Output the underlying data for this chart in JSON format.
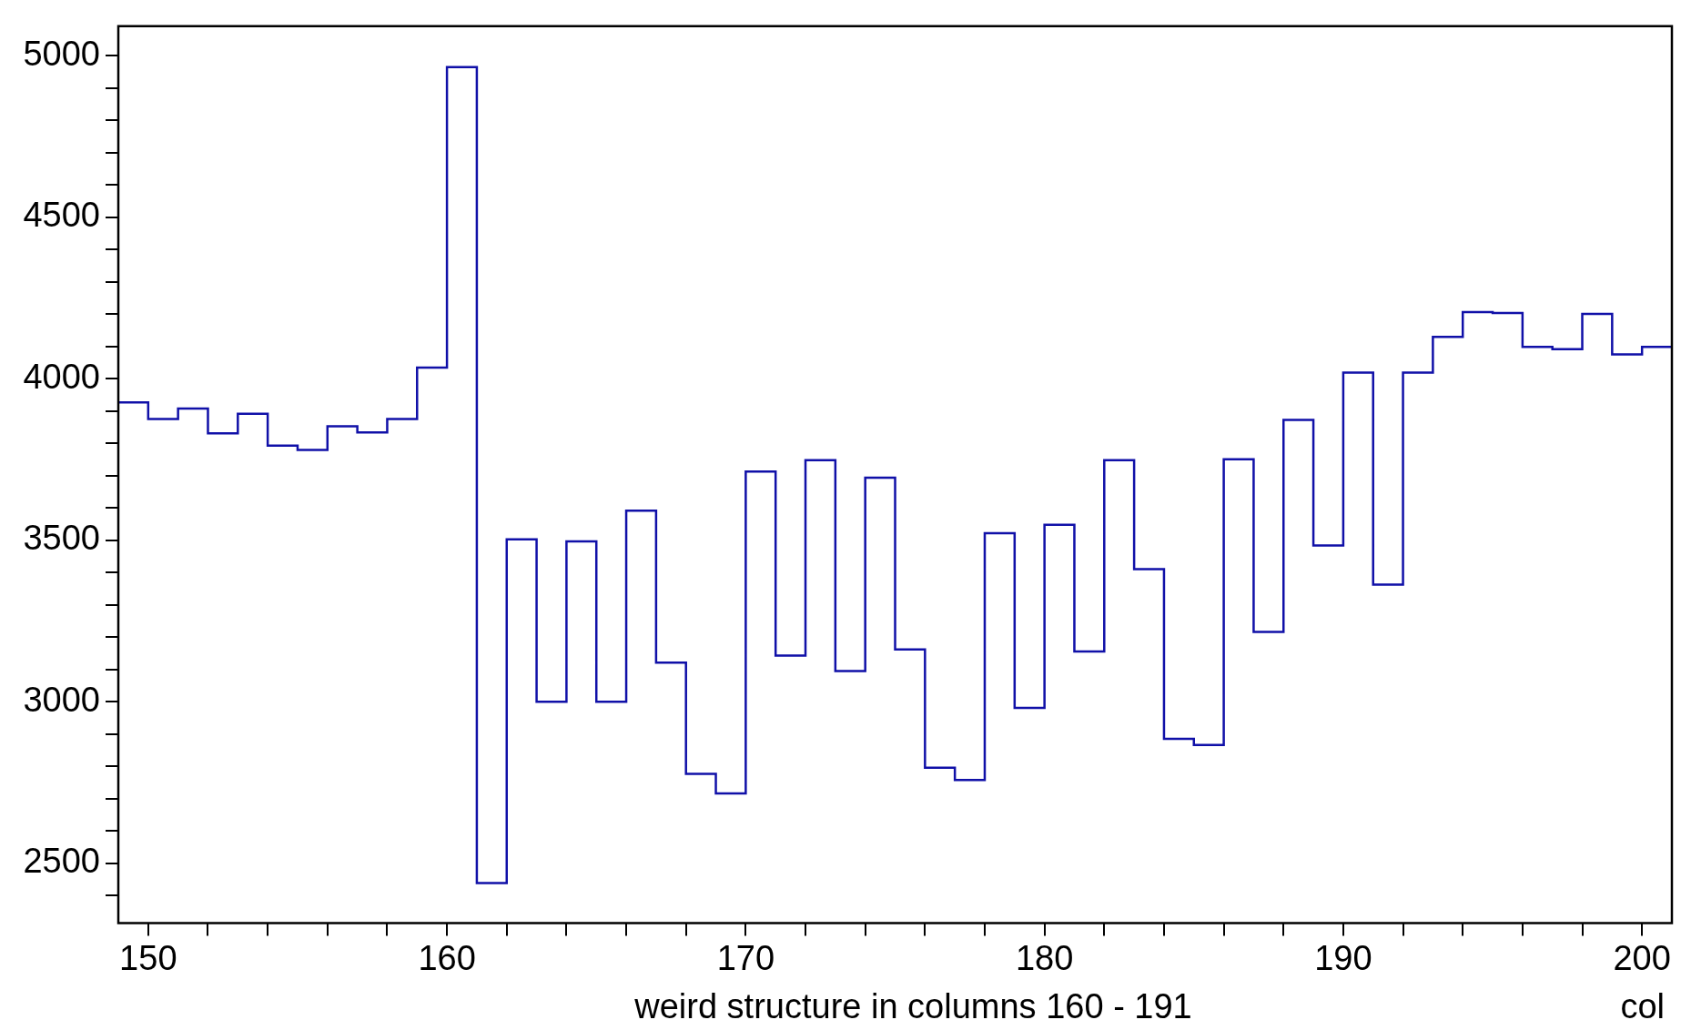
{
  "chart_data": {
    "type": "histogram",
    "xlabel": "weird structure in columns 160 - 191",
    "annotations": [
      "col"
    ],
    "color": "#1010a8",
    "bins": [
      149,
      150,
      151,
      152,
      153,
      154,
      155,
      156,
      157,
      158,
      159,
      160,
      161,
      162,
      163,
      164,
      165,
      166,
      167,
      168,
      169,
      170,
      171,
      172,
      173,
      174,
      175,
      176,
      177,
      178,
      179,
      180,
      181,
      182,
      183,
      184,
      185,
      186,
      187,
      188,
      189,
      190,
      191,
      192,
      193,
      194,
      195,
      196,
      197,
      198,
      199,
      200,
      201
    ],
    "values": [
      3927,
      3876,
      3908,
      3831,
      3892,
      3793,
      3780,
      3853,
      3834,
      3876,
      4035,
      4965,
      2439,
      3503,
      3000,
      3497,
      3000,
      3592,
      3121,
      2777,
      2716,
      3713,
      3143,
      3748,
      3095,
      3694,
      3162,
      2796,
      2758,
      3522,
      2981,
      3548,
      3156,
      3748,
      3411,
      2885,
      2866,
      3751,
      3216,
      3873,
      3484,
      4019,
      3363,
      4019,
      4130,
      4207,
      4204,
      4099,
      4092,
      4201,
      4076,
      4099
    ],
    "xlim": [
      149,
      201
    ],
    "ylim": [
      2315,
      5092
    ],
    "xticks": [
      150,
      {
        "value": 152,
        "label": null
      },
      {
        "value": 154,
        "label": null
      },
      {
        "value": 156,
        "label": null
      },
      {
        "value": 158,
        "label": null
      },
      160,
      {
        "value": 162,
        "label": null
      },
      {
        "value": 164,
        "label": null
      },
      {
        "value": 166,
        "label": null
      },
      {
        "value": 168,
        "label": null
      },
      170,
      {
        "value": 172,
        "label": null
      },
      {
        "value": 174,
        "label": null
      },
      {
        "value": 176,
        "label": null
      },
      {
        "value": 178,
        "label": null
      },
      180,
      {
        "value": 182,
        "label": null
      },
      {
        "value": 184,
        "label": null
      },
      {
        "value": 186,
        "label": null
      },
      {
        "value": 188,
        "label": null
      },
      190,
      {
        "value": 192,
        "label": null
      },
      {
        "value": 194,
        "label": null
      },
      {
        "value": 196,
        "label": null
      },
      {
        "value": 198,
        "label": null
      },
      200
    ],
    "yticks": [
      {
        "value": 2400,
        "label": null
      },
      2500,
      {
        "value": 2600,
        "label": null
      },
      {
        "value": 2700,
        "label": null
      },
      {
        "value": 2800,
        "label": null
      },
      {
        "value": 2900,
        "label": null
      },
      3000,
      {
        "value": 3100,
        "label": null
      },
      {
        "value": 3200,
        "label": null
      },
      {
        "value": 3300,
        "label": null
      },
      {
        "value": 3400,
        "label": null
      },
      3500,
      {
        "value": 3600,
        "label": null
      },
      {
        "value": 3700,
        "label": null
      },
      {
        "value": 3800,
        "label": null
      },
      {
        "value": 3900,
        "label": null
      },
      4000,
      {
        "value": 4100,
        "label": null
      },
      {
        "value": 4200,
        "label": null
      },
      {
        "value": 4300,
        "label": null
      },
      {
        "value": 4400,
        "label": null
      },
      4500,
      {
        "value": 4600,
        "label": null
      },
      {
        "value": 4700,
        "label": null
      },
      {
        "value": 4800,
        "label": null
      },
      {
        "value": 4900,
        "label": null
      },
      5000
    ]
  }
}
